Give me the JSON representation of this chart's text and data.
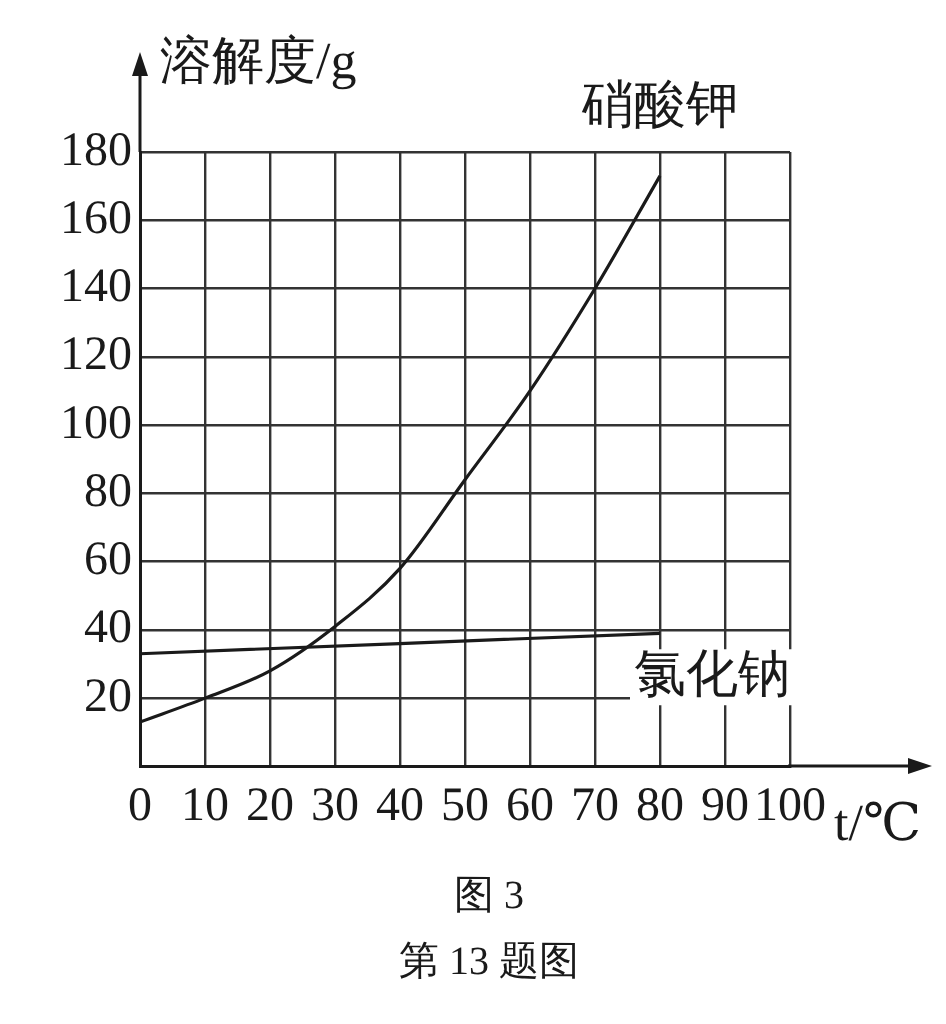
{
  "chart_data": {
    "type": "line",
    "xlabel": "t/℃",
    "ylabel": "溶解度/g",
    "x": [
      0,
      10,
      20,
      30,
      40,
      50,
      60,
      70,
      80
    ],
    "series": [
      {
        "name": "硝酸钾",
        "color": "#1a1a1a",
        "values": [
          13,
          20,
          28,
          41,
          58,
          84,
          110,
          140,
          173
        ]
      },
      {
        "name": "氯化钠",
        "color": "#1a1a1a",
        "x": [
          0,
          80
        ],
        "values": [
          33,
          39
        ]
      }
    ],
    "xlim": [
      0,
      100
    ],
    "xticks": [
      0,
      10,
      20,
      30,
      40,
      50,
      60,
      70,
      80,
      90,
      100
    ],
    "ylim": [
      0,
      180
    ],
    "yticks": [
      {
        "value": 0,
        "label": null
      },
      20,
      40,
      60,
      80,
      100,
      120,
      140,
      160,
      180
    ],
    "grid": true,
    "legend": false,
    "marker": "none",
    "line_style": "solid",
    "annotations": [
      "图 3",
      "第 13 题图"
    ]
  }
}
